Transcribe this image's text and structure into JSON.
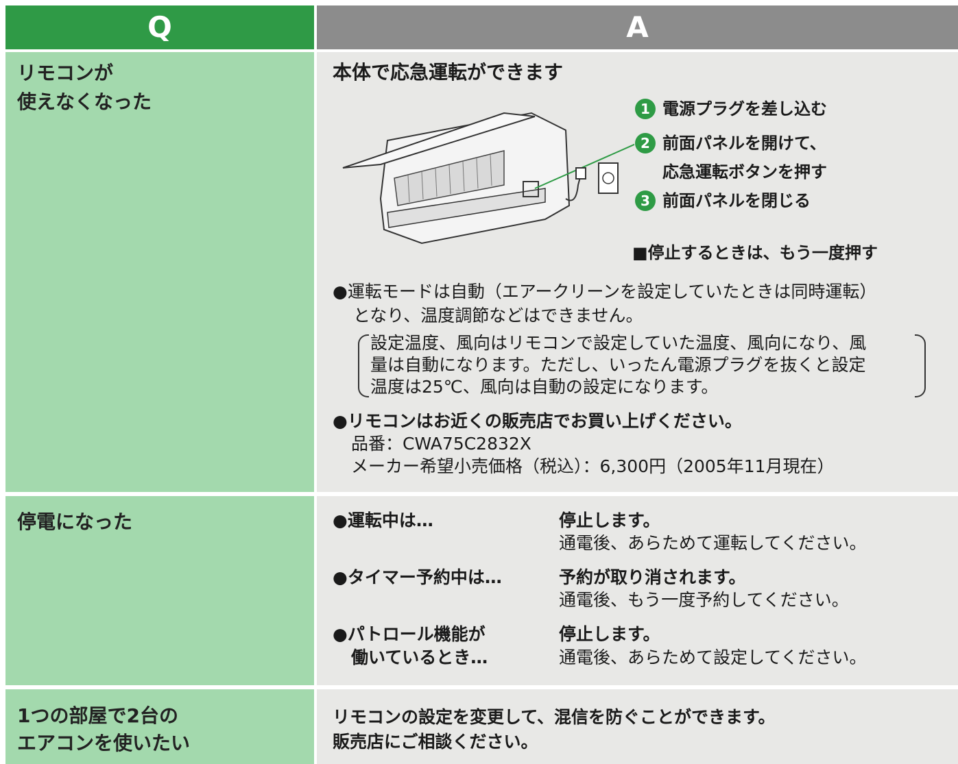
{
  "header": {
    "q": "Q",
    "a": "A"
  },
  "rows": [
    {
      "question": [
        "リモコンが",
        "使えなくなった"
      ],
      "answer": {
        "heading": "本体で応急運転ができます",
        "steps": [
          {
            "number": 1,
            "lines": [
              "電源プラグを差し込む"
            ]
          },
          {
            "number": 2,
            "lines": [
              "前面パネルを開けて、",
              "応急運転ボタンを押す"
            ]
          },
          {
            "number": 3,
            "lines": [
              "前面パネルを閉じる"
            ]
          }
        ],
        "stop_note": "■停止するときは、もう一度押す",
        "note1": [
          "●運転モードは自動（エアークリーンを設定していたときは同時運転）",
          "となり、温度調節などはできません。"
        ],
        "paren_note": [
          "設定温度、風向はリモコンで設定していた温度、風向になり、風",
          "量は自動になります。ただし、いったん電源プラグを抜くと設定",
          "温度は25℃、風向は自動の設定になります。"
        ],
        "note2": [
          "●リモコンはお近くの販売店でお買い上げください。",
          "品番：CWA75C2832X",
          "メーカー希望小売価格（税込）：6,300円（2005年11月現在）"
        ]
      }
    },
    {
      "question": [
        "停電になった"
      ],
      "answer": {
        "items": [
          {
            "condition": [
              "●運転中は…"
            ],
            "result": "停止します。",
            "detail": "通電後、あらためて運転してください。"
          },
          {
            "condition": [
              "●タイマー予約中は…"
            ],
            "result": "予約が取り消されます。",
            "detail": "通電後、もう一度予約してください。"
          },
          {
            "condition": [
              "●パトロール機能が",
              "働いているとき…"
            ],
            "result": "停止します。",
            "detail": "通電後、あらためて設定してください。"
          }
        ]
      }
    },
    {
      "question": [
        "1つの部屋で2台の",
        "エアコンを使いたい"
      ],
      "answer": {
        "lines": [
          "リモコンの設定を変更して、混信を防ぐことができます。",
          "販売店にご相談ください。"
        ]
      }
    }
  ]
}
